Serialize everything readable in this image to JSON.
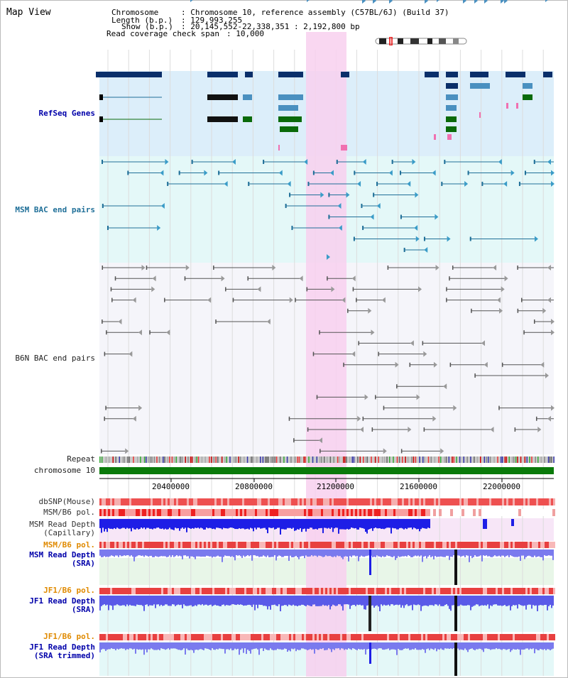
{
  "title": "Map View",
  "header": {
    "chromosome_label": "Chromosome",
    "chromosome_value": ": Chromosome 10, reference assembly (C57BL/6J) (Build 37)",
    "length_label": "Length (b.p.)",
    "length_value": ": 129,993,255",
    "show_label": "Show (b.p.)",
    "show_value": ": 20,145,552-22,338,351 : 2,192,800 bp",
    "coverage_label": "Read coverage check span",
    "coverage_value": ": 10,000"
  },
  "tracks": {
    "refseq": "RefSeq Genes",
    "msm_bac": "MSM BAC end pairs",
    "b6n_bac": "B6N BAC end pairs",
    "repeat": "Repeat",
    "chromosome": "chromosome 10",
    "dbsnp": "dbSNP(Mouse)",
    "msm_b6_pol_1": "MSM/B6 pol.",
    "msm_depth_cap_1": "MSM Read Depth",
    "msm_depth_cap_2": "(Capillary)",
    "msm_b6_pol_2": "MSM/B6 pol.",
    "msm_depth_sra_1": "MSM Read Depth",
    "msm_depth_sra_2": "(SRA)",
    "jf1_b6_pol_1": "JF1/B6 pol.",
    "jf1_depth_sra_1": "JF1 Read Depth",
    "jf1_depth_sra_2": "(SRA)",
    "jf1_b6_pol_2": "JF1/B6 pol.",
    "jf1_depth_trim_1": "JF1 Read Depth",
    "jf1_depth_trim_2": "(SRA trimmed)"
  },
  "axis": {
    "ticks": [
      "20400000",
      "20800000",
      "21200000",
      "21600000",
      "22000000"
    ]
  },
  "colors": {
    "refseq_bg": "#dceefa",
    "msm_bg": "#e4f8f8",
    "b6n_bg": "#f5f5fa",
    "highlight": "#f8d0ee",
    "refseq_dark": "#0a2f6a",
    "refseq_mid": "#4a90c0",
    "refseq_green": "#0a6a0a",
    "msm_teal": "#1f6f98",
    "b6n_grey": "#555555",
    "chromosome_green": "#0a7a0a",
    "depth_blue": "#1e1ee6",
    "depth_light": "#6666ee",
    "pol_red": "#ee2222",
    "jf1_label": "#e08a00",
    "label_blue": "#0000aa"
  }
}
